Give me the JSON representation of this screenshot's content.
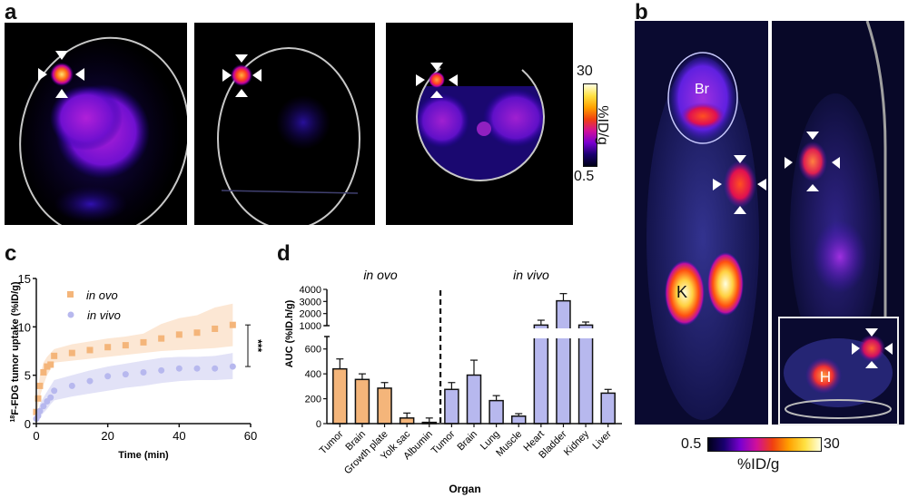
{
  "figure": {
    "panels": {
      "a": {
        "letter": "a",
        "images": [
          {
            "name": "egg-pet-image-1",
            "description": "in ovo PET/CT of egg with tumor marked by arrowheads"
          },
          {
            "name": "egg-pet-image-2",
            "description": "in ovo PET/CT of egg, second view"
          },
          {
            "name": "egg-pet-image-3",
            "description": "in ovo PET/CT of egg, transverse view"
          }
        ],
        "colorbar": {
          "max_label": "30",
          "min_label": "0.5",
          "unit_label": "%ID/g"
        }
      },
      "b": {
        "letter": "b",
        "labels": {
          "brain": "Br",
          "kidney": "K",
          "heart": "H"
        },
        "colorbar": {
          "min_label": "0.5",
          "max_label": "30",
          "unit_label": "%ID/g"
        }
      },
      "c": {
        "letter": "c"
      },
      "d": {
        "letter": "d"
      }
    },
    "colors": {
      "in_ovo": "#F4B57A",
      "in_vivo": "#B7B8EE",
      "in_ovo_band": "#FBE3CC",
      "in_vivo_band": "#DDDDF6",
      "bar_edge": "#111111"
    }
  },
  "chart_data": [
    {
      "id": "c",
      "type": "scatter",
      "title": "",
      "xlabel": "Time (min)",
      "ylabel_sup": "18",
      "ylabel": "F-FDG tumor uptake (%ID/g)",
      "xlim": [
        0,
        60
      ],
      "ylim": [
        0,
        15
      ],
      "xticks": [
        0,
        20,
        40,
        60
      ],
      "yticks": [
        0,
        5,
        10,
        15
      ],
      "legend": {
        "position": "top-left",
        "entries": [
          "in ovo",
          "in vivo"
        ]
      },
      "significance": "***",
      "series": [
        {
          "name": "in ovo",
          "marker": "square",
          "x": [
            0,
            0.5,
            1,
            2,
            3,
            4,
            5,
            10,
            15,
            20,
            25,
            30,
            35,
            40,
            45,
            50,
            55
          ],
          "y": [
            1.2,
            2.6,
            3.9,
            5.3,
            5.9,
            6.1,
            7.0,
            7.3,
            7.6,
            7.9,
            8.1,
            8.4,
            8.8,
            9.2,
            9.4,
            9.8,
            10.2
          ],
          "band_low": [
            0.6,
            1.8,
            2.8,
            4.0,
            5.0,
            5.6,
            6.3,
            6.5,
            6.7,
            6.9,
            7.1,
            7.3,
            7.5,
            7.6,
            7.7,
            7.8,
            8.0
          ],
          "band_high": [
            1.8,
            3.4,
            5.0,
            6.3,
            6.9,
            7.3,
            7.7,
            8.2,
            8.5,
            8.8,
            9.0,
            9.3,
            10.3,
            10.9,
            11.2,
            12.0,
            12.4
          ]
        },
        {
          "name": "in vivo",
          "marker": "circle",
          "x": [
            0,
            0.5,
            1,
            2,
            3,
            4,
            5,
            10,
            15,
            20,
            25,
            30,
            35,
            40,
            45,
            50,
            55
          ],
          "y": [
            0.5,
            0.8,
            1.3,
            1.8,
            2.3,
            2.7,
            3.4,
            3.9,
            4.4,
            4.9,
            5.1,
            5.3,
            5.5,
            5.7,
            5.7,
            5.7,
            5.9
          ],
          "band_low": [
            0.2,
            0.4,
            0.7,
            1.1,
            1.5,
            2.0,
            2.4,
            2.8,
            3.1,
            3.4,
            3.7,
            3.9,
            4.2,
            4.4,
            4.5,
            4.5,
            4.6
          ],
          "band_high": [
            0.8,
            1.3,
            2.0,
            2.7,
            3.3,
            3.9,
            4.5,
            5.0,
            5.5,
            5.9,
            6.2,
            6.5,
            6.8,
            6.9,
            6.9,
            7.0,
            7.3
          ]
        }
      ]
    },
    {
      "id": "d",
      "type": "bar",
      "title": "",
      "xlabel": "Organ",
      "ylabel": "AUC (%ID.h/g)",
      "axis_break": {
        "lower_range": [
          0,
          700
        ],
        "upper_range": [
          1000,
          4000
        ]
      },
      "yticks_lower": [
        0,
        200,
        400,
        600
      ],
      "yticks_upper": [
        1000,
        2000,
        3000,
        4000
      ],
      "group_labels": [
        "in ovo",
        "in vivo"
      ],
      "categories": [
        "Tumor",
        "Brain",
        "Growth plate",
        "Yolk sac",
        "Albumin",
        "Tumor",
        "Brain",
        "Lung",
        "Muscle",
        "Heart",
        "Bladder",
        "Kidney",
        "Liver"
      ],
      "groups": [
        "in ovo",
        "in ovo",
        "in ovo",
        "in ovo",
        "in ovo",
        "in vivo",
        "in vivo",
        "in vivo",
        "in vivo",
        "in vivo",
        "in vivo",
        "in vivo",
        "in vivo"
      ],
      "values": [
        440,
        355,
        285,
        45,
        10,
        275,
        390,
        185,
        60,
        1050,
        3050,
        1050,
        245
      ],
      "errors": [
        80,
        45,
        45,
        40,
        35,
        55,
        120,
        40,
        20,
        400,
        600,
        250,
        30
      ]
    }
  ]
}
